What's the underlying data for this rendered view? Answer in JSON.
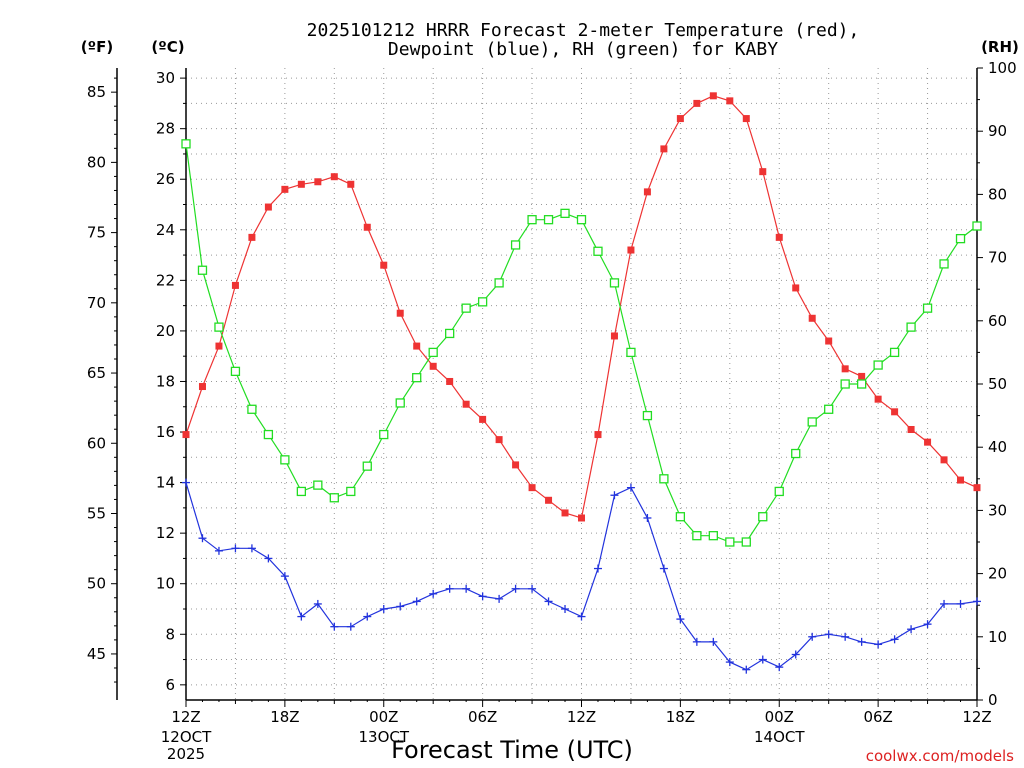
{
  "chart_data": {
    "type": "line",
    "title_line1": "2025101212 HRRR Forecast 2-meter Temperature (red),",
    "title_line2": "Dewpoint (blue), RH (green) for KABY",
    "xlabel": "Forecast Time (UTC)",
    "credit": "coolwx.com/models",
    "unit_f": "(ºF)",
    "unit_c": "(ºC)",
    "unit_rh": "(RH)",
    "x_range": [
      0,
      48
    ],
    "x_ticks": [
      {
        "x": 0,
        "label": "12Z",
        "sub1": "12OCT",
        "sub2": "2025"
      },
      {
        "x": 6,
        "label": "18Z",
        "sub1": "",
        "sub2": ""
      },
      {
        "x": 12,
        "label": "00Z",
        "sub1": "13OCT",
        "sub2": ""
      },
      {
        "x": 18,
        "label": "06Z",
        "sub1": "",
        "sub2": ""
      },
      {
        "x": 24,
        "label": "12Z",
        "sub1": "",
        "sub2": ""
      },
      {
        "x": 30,
        "label": "18Z",
        "sub1": "",
        "sub2": ""
      },
      {
        "x": 36,
        "label": "00Z",
        "sub1": "14OCT",
        "sub2": ""
      },
      {
        "x": 42,
        "label": "06Z",
        "sub1": "",
        "sub2": ""
      },
      {
        "x": 48,
        "label": "12Z",
        "sub1": "",
        "sub2": ""
      }
    ],
    "ylim_c": [
      5.4,
      30.4
    ],
    "ylim_rh": [
      0,
      100
    ],
    "y_ticks_c": [
      6,
      8,
      10,
      12,
      14,
      16,
      18,
      20,
      22,
      24,
      26,
      28,
      30
    ],
    "y_ticks_f": [
      45,
      50,
      55,
      60,
      65,
      70,
      75,
      80,
      85
    ],
    "y_ticks_rh": [
      0,
      10,
      20,
      30,
      40,
      50,
      60,
      70,
      80,
      90,
      100
    ],
    "grid": true,
    "series": [
      {
        "name": "Temperature (°C)",
        "axis": "c",
        "color": "#ee3333",
        "marker": "filled-square",
        "values": [
          15.9,
          17.8,
          19.4,
          21.8,
          23.7,
          24.9,
          25.6,
          25.8,
          25.9,
          26.1,
          25.8,
          24.1,
          22.6,
          20.7,
          19.4,
          18.6,
          18.0,
          17.1,
          16.5,
          15.7,
          14.7,
          13.8,
          13.3,
          12.8,
          12.6,
          15.9,
          19.8,
          23.2,
          25.5,
          27.2,
          28.4,
          29.0,
          29.3,
          29.1,
          28.4,
          26.3,
          23.7,
          21.7,
          20.5,
          19.6,
          18.5,
          18.2,
          17.3,
          16.8,
          16.1,
          15.6,
          14.9,
          14.1,
          13.8
        ]
      },
      {
        "name": "Dewpoint (°C)",
        "axis": "c",
        "color": "#2233dd",
        "marker": "plus",
        "values": [
          14.0,
          11.8,
          11.3,
          11.4,
          11.4,
          11.0,
          10.3,
          8.7,
          9.2,
          8.3,
          8.3,
          8.7,
          9.0,
          9.1,
          9.3,
          9.6,
          9.8,
          9.8,
          9.5,
          9.4,
          9.8,
          9.8,
          9.3,
          9.0,
          8.7,
          10.6,
          13.5,
          13.8,
          12.6,
          10.6,
          8.6,
          7.7,
          7.7,
          6.9,
          6.6,
          7.0,
          6.7,
          7.2,
          7.9,
          8.0,
          7.9,
          7.7,
          7.6,
          7.8,
          8.2,
          8.4,
          9.2,
          9.2,
          9.3
        ]
      },
      {
        "name": "RH (%)",
        "axis": "rh",
        "color": "#22dd22",
        "marker": "open-square",
        "values": [
          88,
          68,
          59,
          52,
          46,
          42,
          38,
          33,
          34,
          32,
          33,
          37,
          42,
          47,
          51,
          55,
          58,
          62,
          63,
          66,
          72,
          76,
          76,
          77,
          76,
          71,
          66,
          55,
          45,
          35,
          29,
          26,
          26,
          25,
          25,
          29,
          33,
          39,
          44,
          46,
          50,
          50,
          53,
          55,
          59,
          62,
          69,
          73,
          75
        ]
      }
    ]
  }
}
